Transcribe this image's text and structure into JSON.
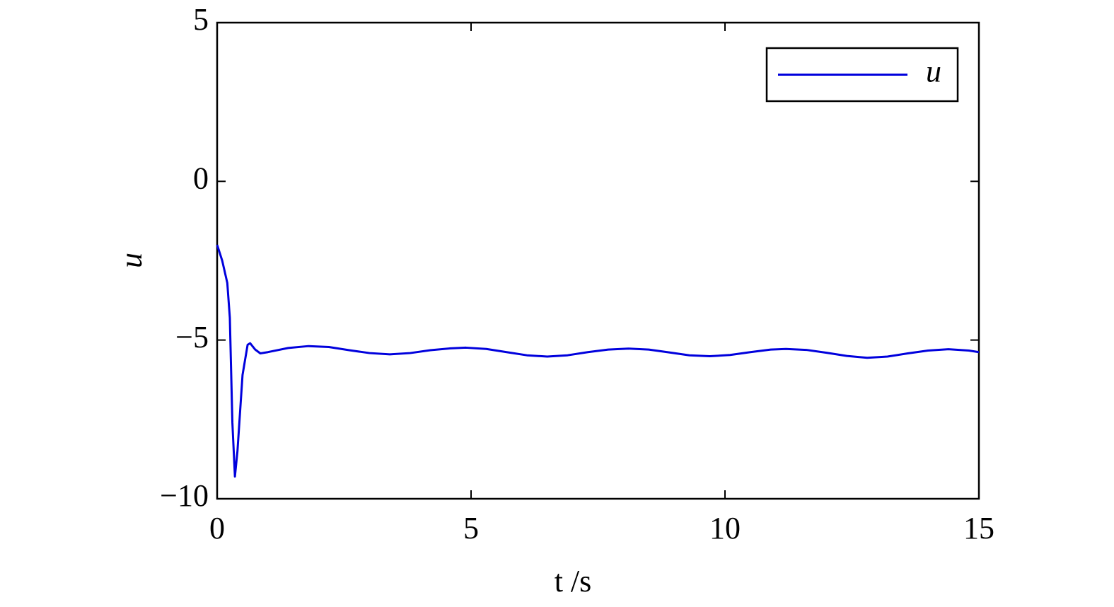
{
  "chart_data": {
    "type": "line",
    "xlabel": "t /s",
    "ylabel": "u",
    "xlim": [
      0,
      15
    ],
    "ylim": [
      -10,
      5
    ],
    "xticks": [
      0,
      5,
      10,
      15
    ],
    "yticks": [
      {
        "value": -10,
        "label": "−10"
      },
      {
        "value": -5,
        "label": "−5"
      },
      0,
      5
    ],
    "legend": "upper right",
    "grid": false,
    "x": [
      0,
      0.1,
      0.2,
      0.25,
      0.3,
      0.35,
      0.4,
      0.5,
      0.6,
      0.65,
      0.75,
      0.85,
      1.0,
      1.4,
      1.8,
      2.2,
      2.6,
      3.0,
      3.4,
      3.8,
      4.2,
      4.6,
      4.9,
      5.3,
      5.7,
      6.1,
      6.5,
      6.9,
      7.3,
      7.7,
      8.1,
      8.5,
      8.9,
      9.3,
      9.7,
      10.1,
      10.5,
      10.9,
      11.2,
      11.6,
      12.0,
      12.4,
      12.8,
      13.2,
      13.6,
      14.0,
      14.4,
      14.8,
      15.0
    ],
    "series": [
      {
        "name": "u",
        "color": "#0000dd",
        "values": [
          -2.0,
          -2.5,
          -3.2,
          -4.3,
          -7.6,
          -9.3,
          -8.5,
          -6.1,
          -5.15,
          -5.1,
          -5.3,
          -5.42,
          -5.38,
          -5.25,
          -5.19,
          -5.22,
          -5.32,
          -5.41,
          -5.45,
          -5.41,
          -5.32,
          -5.26,
          -5.24,
          -5.28,
          -5.38,
          -5.48,
          -5.52,
          -5.48,
          -5.38,
          -5.3,
          -5.27,
          -5.3,
          -5.39,
          -5.48,
          -5.51,
          -5.47,
          -5.38,
          -5.3,
          -5.28,
          -5.31,
          -5.4,
          -5.5,
          -5.56,
          -5.52,
          -5.42,
          -5.33,
          -5.29,
          -5.33,
          -5.38
        ]
      }
    ]
  }
}
